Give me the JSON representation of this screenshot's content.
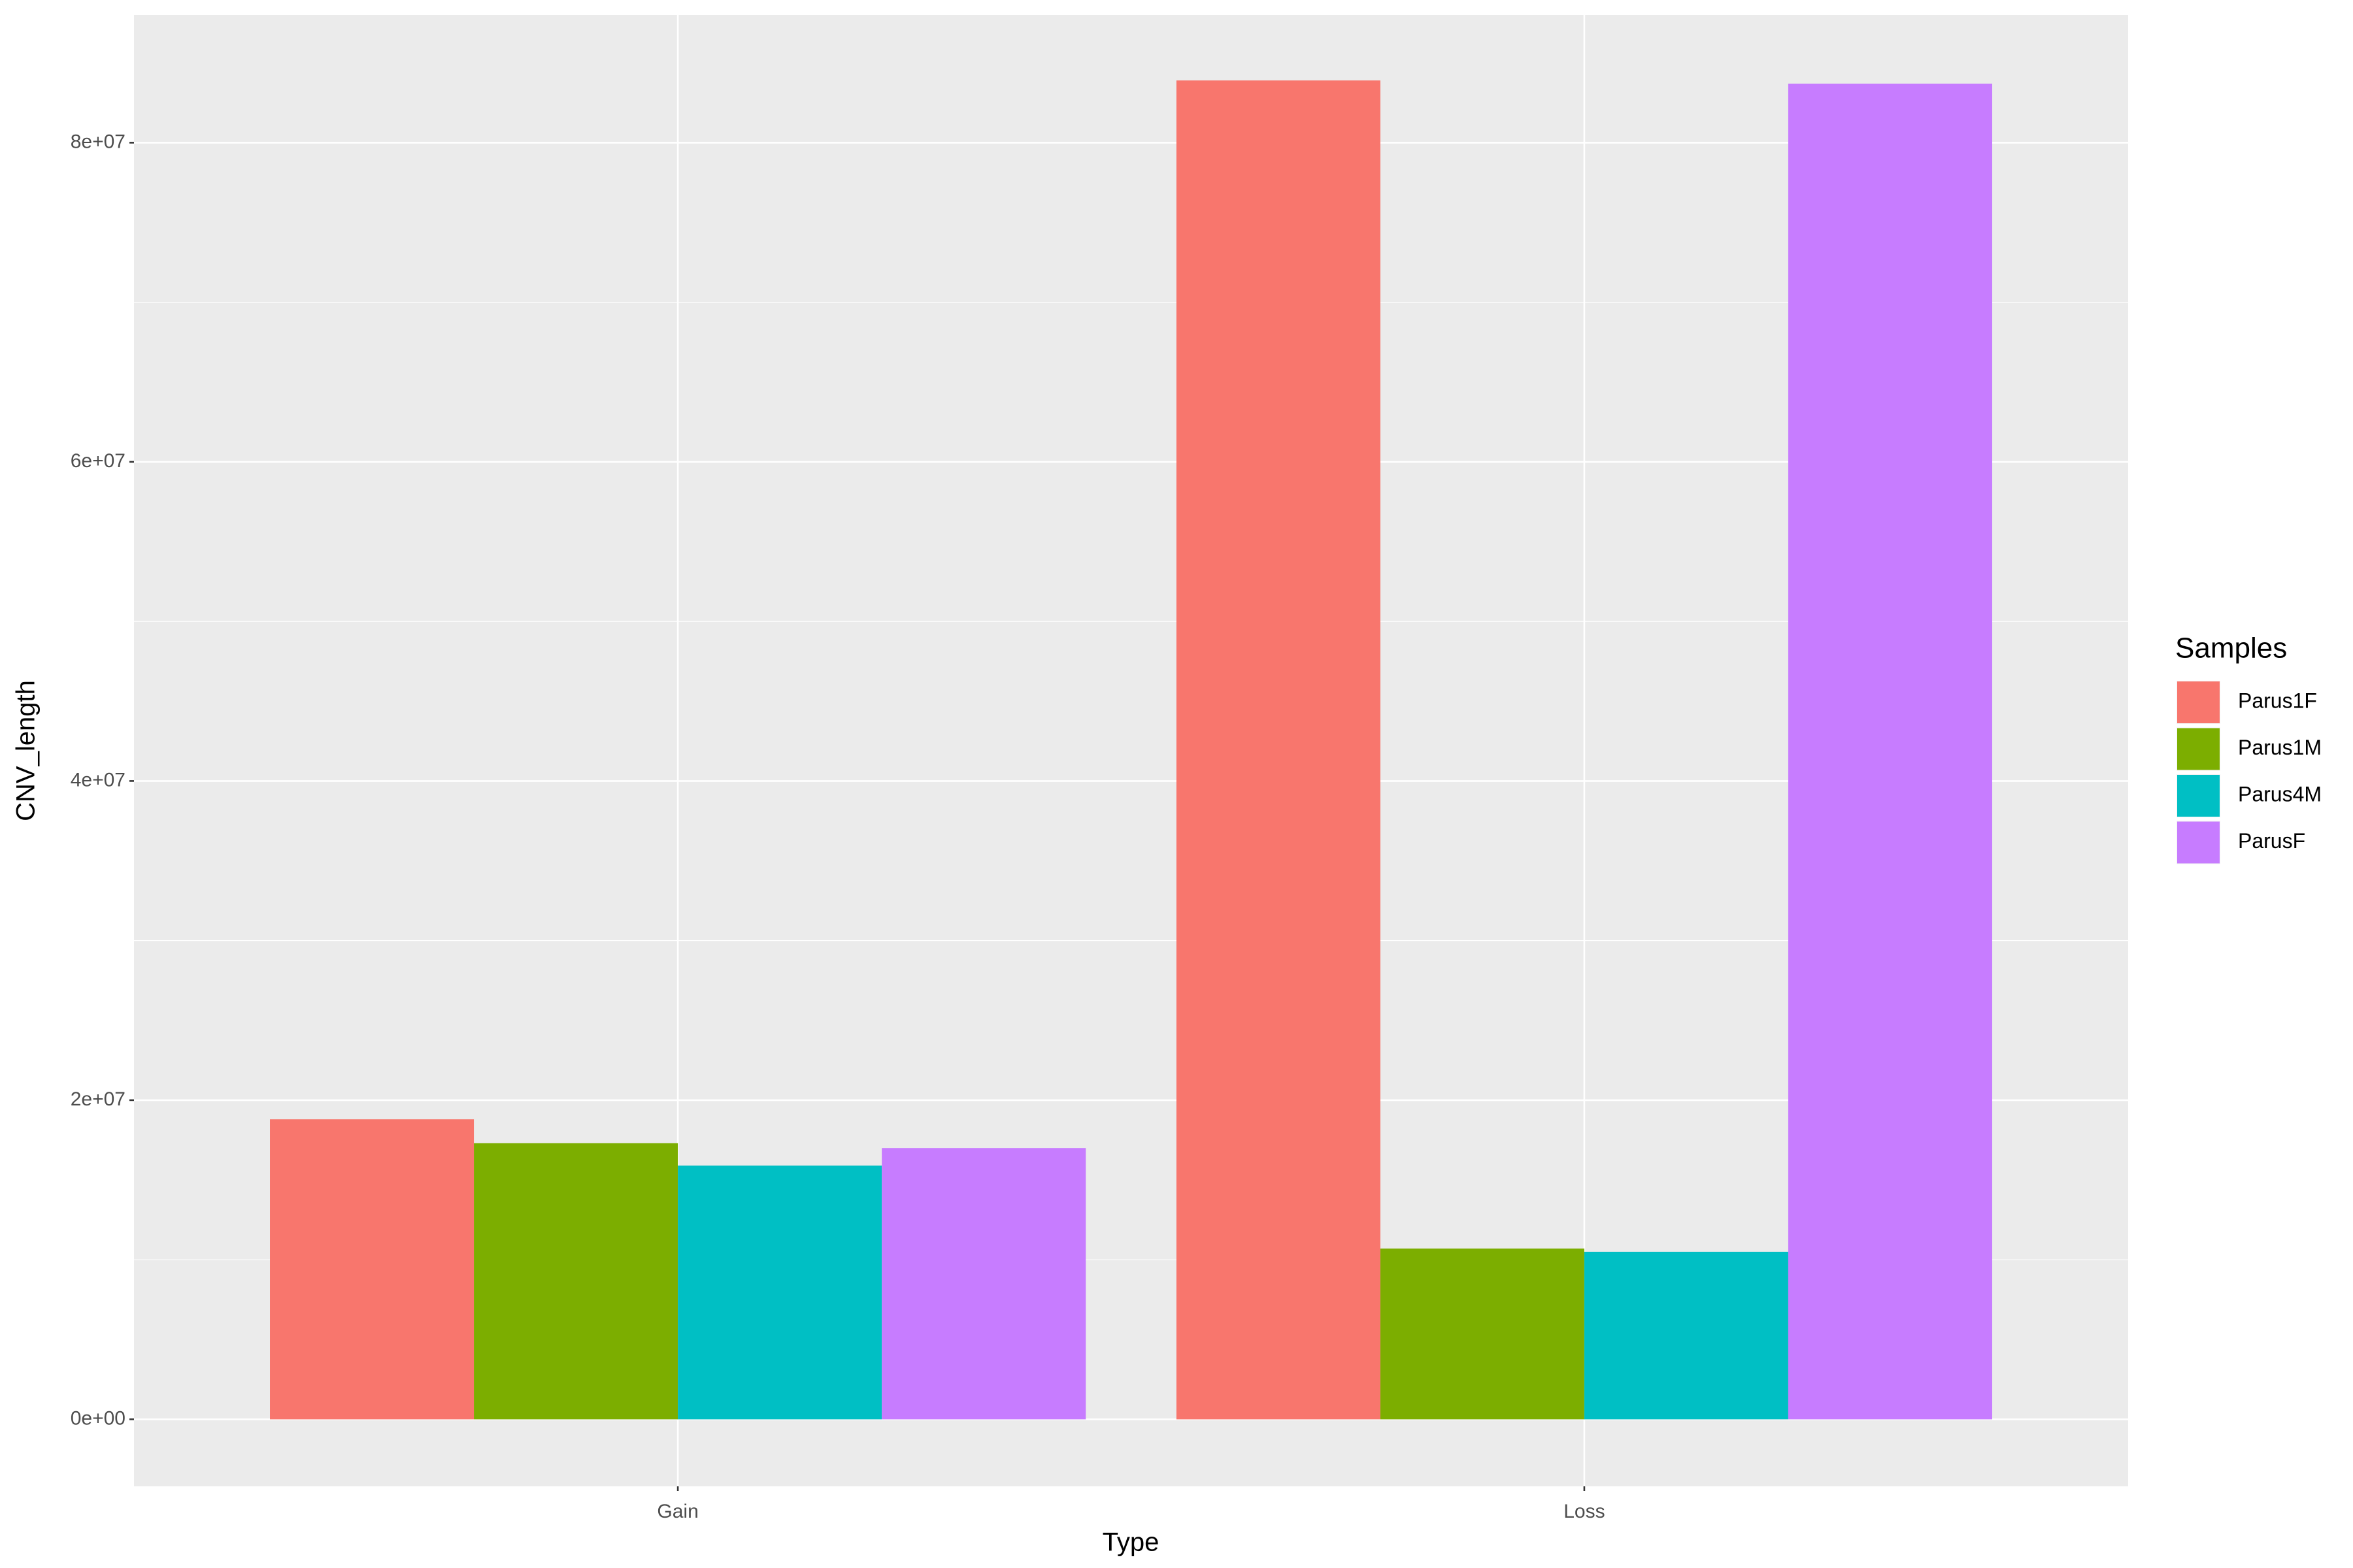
{
  "chart_data": {
    "type": "bar",
    "x_label": "Type",
    "y_label": "CNV_length",
    "categories": [
      "Gain",
      "Loss"
    ],
    "series": [
      {
        "name": "Parus1F",
        "color": "#f8766d",
        "values": [
          18800000,
          83900000
        ]
      },
      {
        "name": "Parus1M",
        "color": "#7cae00",
        "values": [
          17300000,
          10700000
        ]
      },
      {
        "name": "Parus4M",
        "color": "#00bfc4",
        "values": [
          15900000,
          10500000
        ]
      },
      {
        "name": "ParusF",
        "color": "#c77cff",
        "values": [
          17000000,
          83700000
        ]
      }
    ],
    "ylim": [
      -4200000,
      88000000
    ],
    "yticks": [
      {
        "value": 0,
        "label": "0e+00"
      },
      {
        "value": 20000000,
        "label": "2e+07"
      },
      {
        "value": 40000000,
        "label": "4e+07"
      },
      {
        "value": 60000000,
        "label": "6e+07"
      },
      {
        "value": 80000000,
        "label": "8e+07"
      }
    ],
    "legend_title": "Samples",
    "legend_position": "right",
    "grid": true
  }
}
